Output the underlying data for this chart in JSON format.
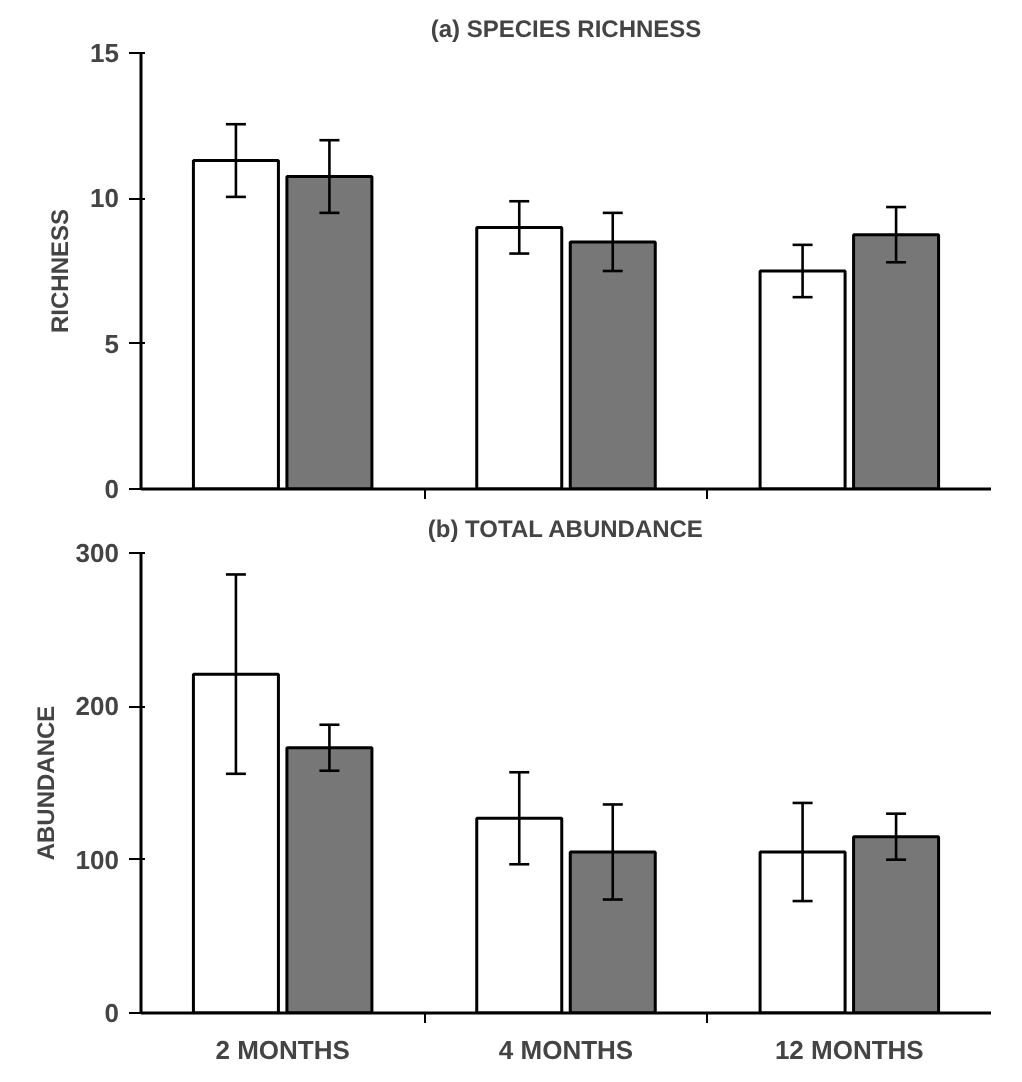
{
  "chart_data": [
    {
      "type": "bar",
      "title": "(a) SPECIES RICHNESS",
      "ylabel": "RICHNESS",
      "categories": [
        null,
        null,
        null
      ],
      "tick_labels": "y",
      "ylim": [
        0,
        15
      ],
      "yticks": [
        0,
        5,
        10,
        15
      ],
      "grid": false,
      "series": [
        {
          "color": "#ffffff",
          "values": [
            11.3,
            9.0,
            7.5
          ],
          "errors": [
            1.25,
            0.9,
            0.9
          ]
        },
        {
          "color": "#777777",
          "values": [
            10.75,
            8.5,
            8.75
          ],
          "errors": [
            1.25,
            1.0,
            0.95
          ]
        }
      ]
    },
    {
      "type": "bar",
      "title": "(b) TOTAL ABUNDANCE",
      "ylabel": "ABUNDANCE",
      "categories": [
        "2 MONTHS",
        "4 MONTHS",
        "12 MONTHS"
      ],
      "ylim": [
        0,
        300
      ],
      "yticks": [
        0,
        100,
        200,
        300
      ],
      "grid": false,
      "series": [
        {
          "color": "#ffffff",
          "values": [
            221,
            127,
            105
          ],
          "errors": [
            65,
            30,
            32
          ]
        },
        {
          "color": "#777777",
          "values": [
            173,
            105,
            115
          ],
          "errors": [
            15,
            31,
            15
          ]
        }
      ]
    }
  ]
}
